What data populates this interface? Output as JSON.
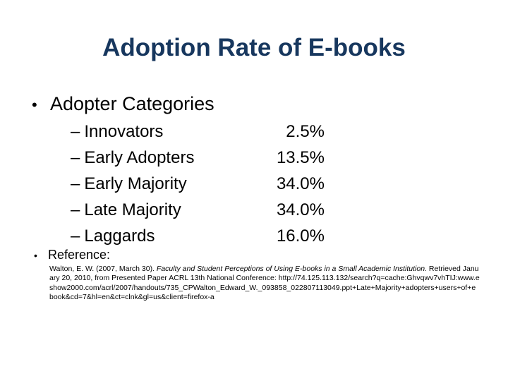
{
  "slide": {
    "title": "Adoption Rate of E-books",
    "main_bullet": "Adopter Categories",
    "categories": [
      {
        "label": "Innovators",
        "value": "2.5%"
      },
      {
        "label": "Early Adopters",
        "value": "13.5%"
      },
      {
        "label": "Early Majority",
        "value": "34.0%"
      },
      {
        "label": "Late Majority",
        "value": "34.0%"
      },
      {
        "label": "Laggards",
        "value": "16.0%"
      }
    ],
    "reference": {
      "label": "Reference:",
      "authors": "Walton, E. W. (2007, March 30). ",
      "title_italic": "Faculty and Student Perceptions of Using E-books in a Small Academic Institution.",
      "retrieved": " Retrieved January 20, 2010, from Presented Paper ACRL 13th National Conference:",
      "url": "http://74.125.113.132/search?q=cache:Ghvqwv7vhTIJ:www.eshow2000.com/acrl/2007/handouts/735_CPWalton_Edward_W._093858_022807113049.ppt+Late+Majority+adopters+users+of+ebook&cd=7&hl=en&ct=clnk&gl=us&client=firefox-a"
    }
  }
}
